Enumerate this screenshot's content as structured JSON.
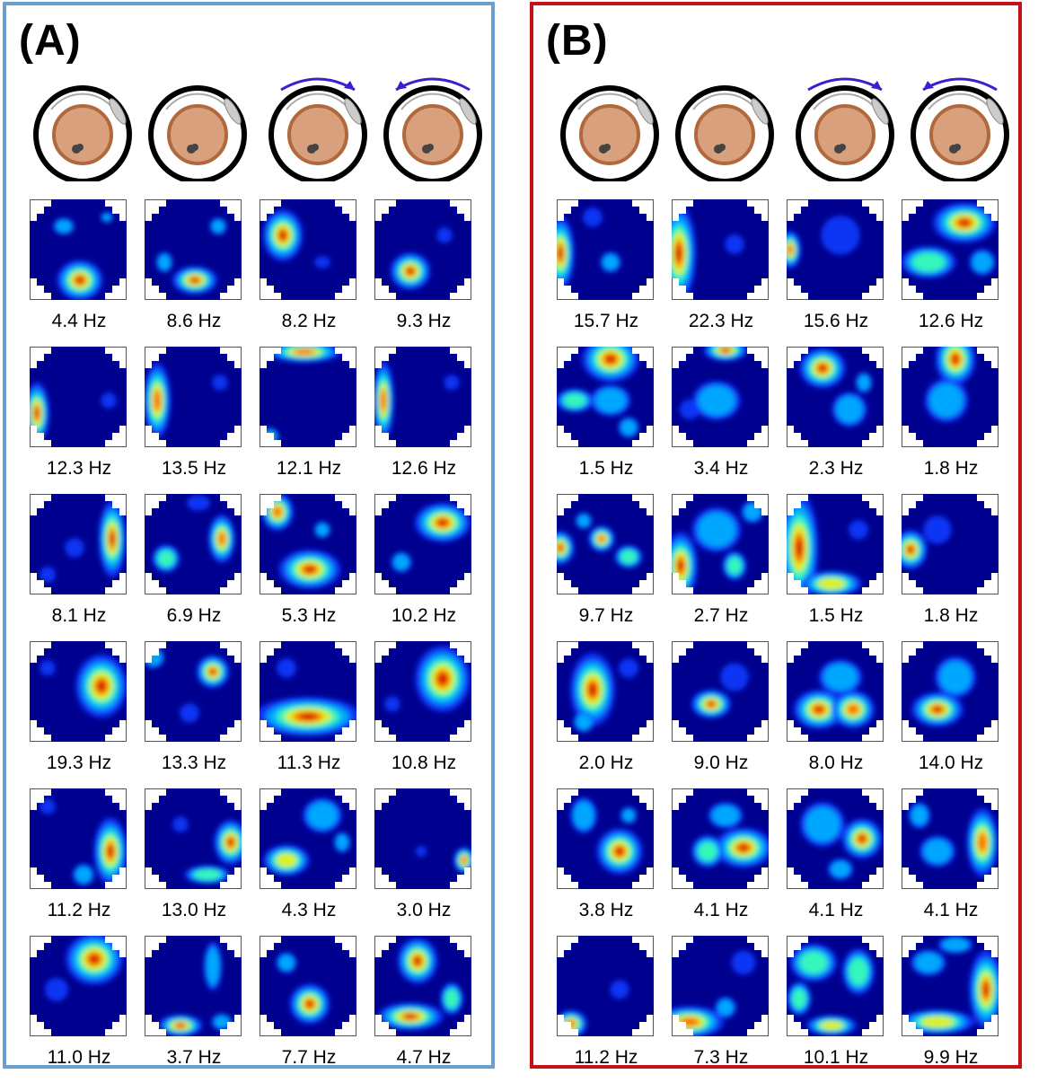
{
  "panels": [
    {
      "id": "a",
      "label": "(A)",
      "rows": [
        [
          "4.4 Hz",
          "8.6 Hz",
          "8.2 Hz",
          "9.3 Hz"
        ],
        [
          "12.3 Hz",
          "13.5 Hz",
          "12.1 Hz",
          "12.6 Hz"
        ],
        [
          "8.1 Hz",
          "6.9 Hz",
          "5.3 Hz",
          "10.2 Hz"
        ],
        [
          "19.3 Hz",
          "13.3 Hz",
          "11.3 Hz",
          "10.8 Hz"
        ],
        [
          "11.2 Hz",
          "13.0 Hz",
          "4.3 Hz",
          "3.0 Hz"
        ],
        [
          "11.0 Hz",
          "3.7 Hz",
          "7.7 Hz",
          "4.7 Hz"
        ]
      ]
    },
    {
      "id": "b",
      "label": "(B)",
      "rows": [
        [
          "15.7 Hz",
          "22.3 Hz",
          "15.6 Hz",
          "12.6 Hz"
        ],
        [
          "1.5 Hz",
          "3.4 Hz",
          "2.3 Hz",
          "1.8 Hz"
        ],
        [
          "9.7 Hz",
          "2.7 Hz",
          "1.5 Hz",
          "1.8 Hz"
        ],
        [
          "2.0 Hz",
          "9.0 Hz",
          "8.0 Hz",
          "14.0 Hz"
        ],
        [
          "3.8 Hz",
          "4.1 Hz",
          "4.1 Hz",
          "4.1 Hz"
        ],
        [
          "11.2 Hz",
          "7.3 Hz",
          "10.1 Hz",
          "9.9 Hz"
        ]
      ]
    }
  ],
  "colors": {
    "panel_a_border": "#6a9fd1",
    "panel_b_border": "#c41016",
    "arena_floor": "#d9a07e",
    "arena_floor_rim": "#b0683c",
    "rotation_arrow": "#3a1fd1",
    "heatmap_background": "#00008f"
  },
  "icons": [
    "arena-icon",
    "arena-icon",
    "arena-rotating-cw-icon",
    "arena-rotating-ccw-icon"
  ]
}
